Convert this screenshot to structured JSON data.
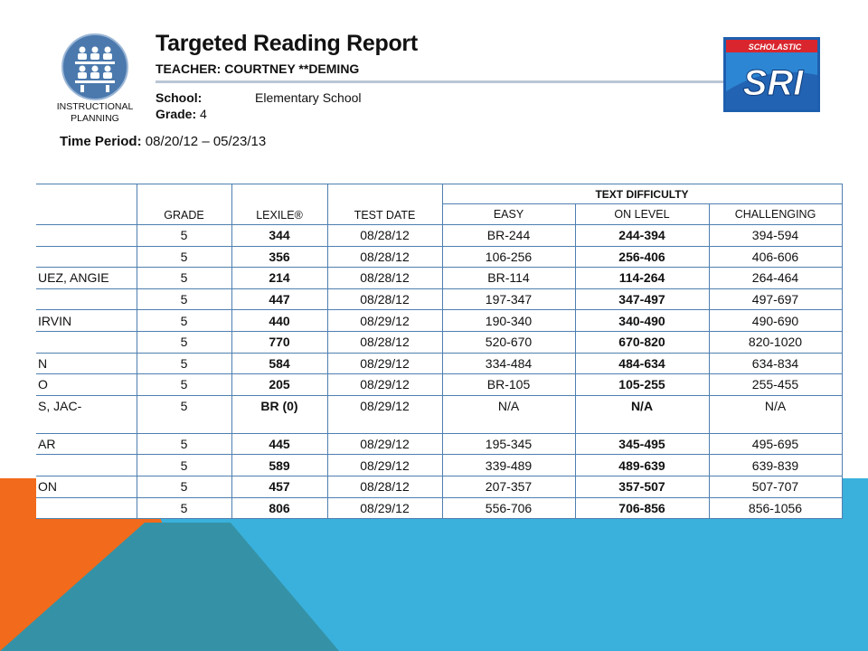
{
  "report": {
    "title": "Targeted Reading Report",
    "teacher": "TEACHER: COURTNEY **DEMING",
    "school_label": "School:",
    "school_value": "Elementary School",
    "grade_label": "Grade:",
    "grade_value": "4",
    "period_label": "Time Period:",
    "period_value": "08/20/12 – 05/23/13",
    "logo_caption_line1": "INSTRUCTIONAL",
    "logo_caption_line2": "PLANNING",
    "brand_small": "SCHOLASTIC",
    "brand_big": "SRI"
  },
  "table": {
    "headers": {
      "grade": "GRADE",
      "lexile": "LEXILE®",
      "test_date": "TEST DATE",
      "group": "TEXT DIFFICULTY",
      "easy": "EASY",
      "on_level": "ON LEVEL",
      "challenging": "CHALLENGING"
    },
    "rows": [
      {
        "name": "",
        "grade": "5",
        "lexile": "344",
        "date": "08/28/12",
        "easy": "BR-244",
        "on": "244-394",
        "chal": "394-594"
      },
      {
        "name": "",
        "grade": "5",
        "lexile": "356",
        "date": "08/28/12",
        "easy": "106-256",
        "on": "256-406",
        "chal": "406-606"
      },
      {
        "name": "UEZ, ANGIE",
        "grade": "5",
        "lexile": "214",
        "date": "08/28/12",
        "easy": "BR-114",
        "on": "114-264",
        "chal": "264-464"
      },
      {
        "name": "",
        "grade": "5",
        "lexile": "447",
        "date": "08/28/12",
        "easy": "197-347",
        "on": "347-497",
        "chal": "497-697"
      },
      {
        "name": "IRVIN",
        "grade": "5",
        "lexile": "440",
        "date": "08/29/12",
        "easy": "190-340",
        "on": "340-490",
        "chal": "490-690"
      },
      {
        "name": "",
        "grade": "5",
        "lexile": "770",
        "date": "08/28/12",
        "easy": "520-670",
        "on": "670-820",
        "chal": "820-1020"
      },
      {
        "name": "N",
        "grade": "5",
        "lexile": "584",
        "date": "08/29/12",
        "easy": "334-484",
        "on": "484-634",
        "chal": "634-834"
      },
      {
        "name": "O",
        "grade": "5",
        "lexile": "205",
        "date": "08/29/12",
        "easy": "BR-105",
        "on": "105-255",
        "chal": "255-455"
      },
      {
        "name": "S, JAC-",
        "grade": "5",
        "lexile": "BR (0)",
        "date": "08/29/12",
        "easy": "N/A",
        "on": "N/A",
        "chal": "N/A"
      },
      {
        "name": "AR",
        "grade": "5",
        "lexile": "445",
        "date": "08/29/12",
        "easy": "195-345",
        "on": "345-495",
        "chal": "495-695"
      },
      {
        "name": "",
        "grade": "5",
        "lexile": "589",
        "date": "08/29/12",
        "easy": "339-489",
        "on": "489-639",
        "chal": "639-839"
      },
      {
        "name": "ON",
        "grade": "5",
        "lexile": "457",
        "date": "08/28/12",
        "easy": "207-357",
        "on": "357-507",
        "chal": "507-707"
      },
      {
        "name": "",
        "grade": "5",
        "lexile": "806",
        "date": "08/29/12",
        "easy": "556-706",
        "on": "706-856",
        "chal": "856-1056"
      }
    ]
  },
  "colors": {
    "orange": "#f26a1b",
    "blue": "#3ab1dc",
    "teal": "#3592a6",
    "table_border": "#4e7fb0"
  }
}
